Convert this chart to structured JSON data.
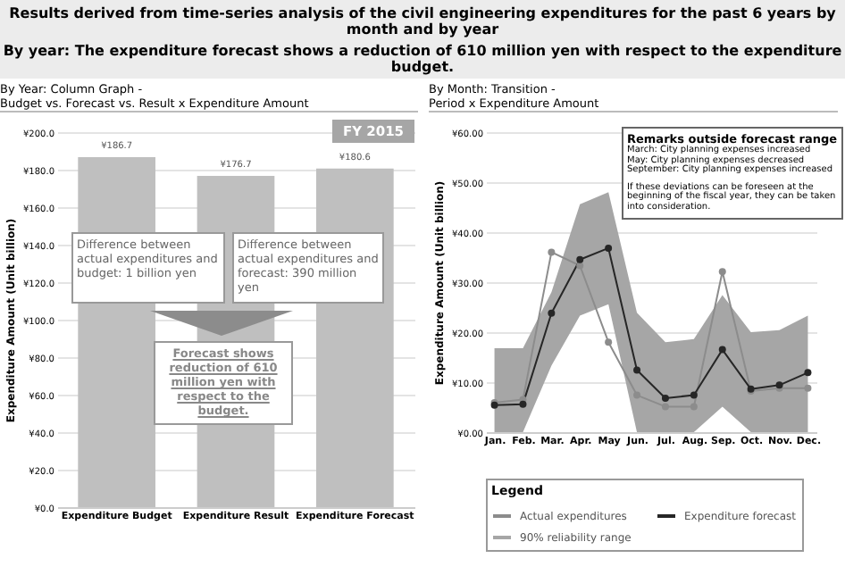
{
  "chart_data": [
    {
      "type": "bar",
      "title": "By Year: Column Graph -\nBudget vs. Forecast vs. Result x Expenditure Amount",
      "ylabel": "Expenditure Amount (Unit billion)",
      "categories": [
        "Expenditure Budget",
        "Expenditure Result",
        "Expenditure Forecast"
      ],
      "values": [
        186.7,
        176.7,
        180.6
      ],
      "color": "#bfbfbf",
      "value_labels": [
        "¥186.7",
        "¥176.7",
        "¥180.6"
      ],
      "ylim": [
        0,
        200
      ],
      "yticks": [
        {
          "value": 0,
          "label": "¥0.0"
        },
        {
          "value": 20,
          "label": "¥20.0"
        },
        {
          "value": 40,
          "label": "¥40.0"
        },
        {
          "value": 60,
          "label": "¥60.0"
        },
        {
          "value": 80,
          "label": "¥80.0"
        },
        {
          "value": 100,
          "label": "¥100.0"
        },
        {
          "value": 120,
          "label": "¥120.0"
        },
        {
          "value": 140,
          "label": "¥140.0"
        },
        {
          "value": 160,
          "label": "¥160.0"
        },
        {
          "value": 180,
          "label": "¥180.0"
        },
        {
          "value": 200,
          "label": "¥200.0"
        }
      ],
      "grid": "y",
      "annotations": [
        "Results derived from time-series analysis of the civil engineering expenditures for the past 6 years by month and by year",
        "By year: The expenditure forecast shows a reduction of 610 million yen with respect to the expenditure budget.",
        "FY 2015",
        "Difference between actual expenditures and budget: 1 billion yen",
        "Difference between actual expenditures and forecast: 390 million yen",
        "Forecast shows reduction of 610 million yen with respect to the budget."
      ]
    },
    {
      "type": "line",
      "title": "By Month: Transition -\nPeriod x Expenditure Amount",
      "ylabel": "Expenditure Amount (Unit billion)",
      "legend_title": "Legend",
      "categories": [
        "Jan.",
        "Feb.",
        "Mar.",
        "Apr.",
        "May",
        "Jun.",
        "Jul.",
        "Aug.",
        "Sep.",
        "Oct.",
        "Nov.",
        "Dec."
      ],
      "series": [
        {
          "name": "Actual expenditures",
          "color": "#8c8c8c",
          "values": [
            5.9,
            6.5,
            36,
            33.3,
            18,
            7.4,
            5.1,
            5.1,
            32.1,
            8.2,
            8.8,
            8.8
          ]
        },
        {
          "name": "Expenditure forecast",
          "color": "#262626",
          "values": [
            5.4,
            5.6,
            23.8,
            34.5,
            36.8,
            12.4,
            6.8,
            7.4,
            16.5,
            8.6,
            9.4,
            11.9
          ],
          "lower": [
            0,
            0,
            13.3,
            23.3,
            25.6,
            0,
            0,
            0,
            5.1,
            0,
            0,
            0
          ],
          "upper": [
            16.8,
            16.8,
            28,
            45.6,
            48,
            23.9,
            18,
            18.6,
            27.4,
            20,
            20.4,
            23.3
          ]
        }
      ],
      "ylim": [
        0,
        60
      ],
      "yticks": [
        {
          "value": 0,
          "label": "¥0.00"
        },
        {
          "value": 10,
          "label": "¥10.00"
        },
        {
          "value": 20,
          "label": "¥20.00"
        },
        {
          "value": 30,
          "label": "¥30.00"
        },
        {
          "value": 40,
          "label": "¥40.00"
        },
        {
          "value": 50,
          "label": "¥50.00"
        },
        {
          "value": 60,
          "label": "¥60.00"
        }
      ],
      "grid": "y",
      "marker": "circle",
      "legend": "bottom right",
      "annotations": [
        "Remarks outside forecast range",
        "March: City planning expenses increased",
        "May: City planning expenses decreased",
        "September: City planning expenses increased",
        "If these deviations can be foreseen at the beginning of the fiscal year, they can be taken into consideration.",
        "90% reliability range"
      ]
    }
  ]
}
